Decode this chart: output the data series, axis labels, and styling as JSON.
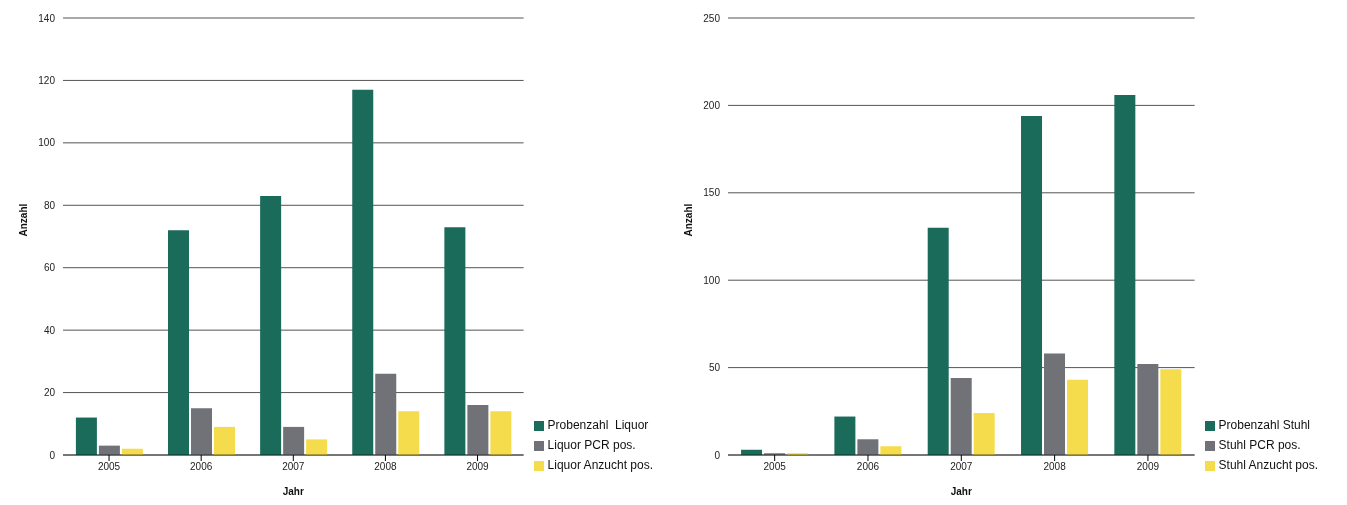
{
  "chart_data": [
    {
      "type": "bar",
      "xlabel": "Jahr",
      "ylabel": "Anzahl",
      "categories": [
        "2005",
        "2006",
        "2007",
        "2008",
        "2009"
      ],
      "series": [
        {
          "name": "Probenzahl  Liquor",
          "color": "#1a6b5a",
          "values": [
            12,
            72,
            83,
            117,
            73
          ]
        },
        {
          "name": "Liquor PCR pos.",
          "color": "#707278",
          "values": [
            3,
            15,
            9,
            26,
            16
          ]
        },
        {
          "name": "Liquor Anzucht pos.",
          "color": "#f4dc4c",
          "values": [
            2,
            9,
            5,
            14,
            14
          ]
        }
      ],
      "ylim": [
        0,
        140
      ],
      "yticks": [
        0,
        20,
        40,
        60,
        80,
        100,
        120,
        140
      ],
      "grid": "y",
      "legend": "right"
    },
    {
      "type": "bar",
      "xlabel": "Jahr",
      "ylabel": "Anzahl",
      "categories": [
        "2005",
        "2006",
        "2007",
        "2008",
        "2009"
      ],
      "series": [
        {
          "name": "Probenzahl Stuhl",
          "color": "#1a6b5a",
          "values": [
            3,
            22,
            130,
            194,
            206
          ]
        },
        {
          "name": "Stuhl PCR pos.",
          "color": "#707278",
          "values": [
            1,
            9,
            44,
            58,
            52
          ]
        },
        {
          "name": "Stuhl Anzucht pos.",
          "color": "#f4dc4c",
          "values": [
            1,
            5,
            24,
            43,
            49
          ]
        }
      ],
      "ylim": [
        0,
        250
      ],
      "yticks": [
        0,
        50,
        100,
        150,
        200,
        250
      ],
      "grid": "y",
      "legend": "right"
    }
  ]
}
